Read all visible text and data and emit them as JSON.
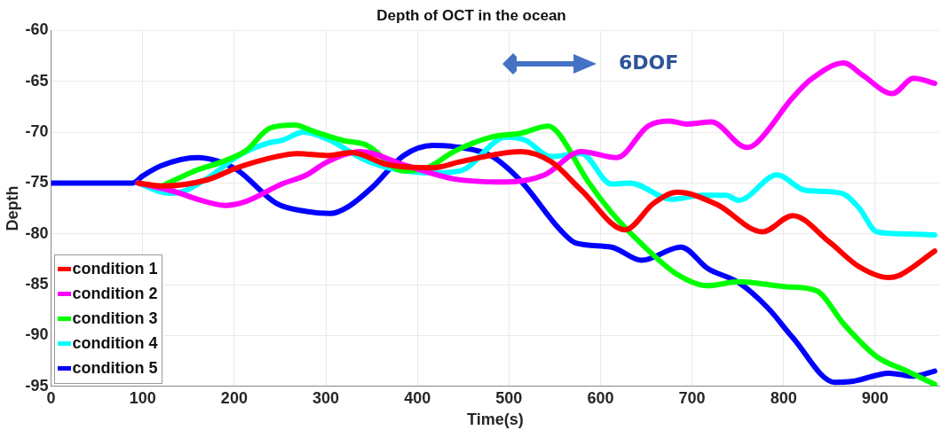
{
  "chart_data": {
    "type": "line",
    "title": "Depth of OCT in the ocean",
    "xlabel": "Time(s)",
    "ylabel": "Depth",
    "annotations": [
      "6DOF"
    ],
    "xlim": [
      0,
      970
    ],
    "xticks": [
      0,
      100,
      200,
      300,
      400,
      500,
      600,
      700,
      800,
      900
    ],
    "ylim": [
      -95,
      -60
    ],
    "yticks": [
      -95,
      -90,
      -85,
      -80,
      -75,
      -70,
      -65,
      -60
    ],
    "grid": true,
    "legend": "bottom left",
    "marker": "none",
    "line_style": "solid",
    "series": [
      {
        "name": "condition 1",
        "color": "#ff0000",
        "x": [
          95,
          121,
          170,
          203,
          246,
          269,
          302,
          328,
          368,
          417,
          447,
          513,
          546,
          579,
          627,
          658,
          684,
          727,
          777,
          810,
          850,
          882,
          915,
          926,
          965
        ],
        "values": [
          -75,
          -75.3,
          -74.7,
          -73.5,
          -72.4,
          -72.1,
          -72.3,
          -72.0,
          -73.2,
          -73.5,
          -72.9,
          -71.9,
          -72.9,
          -75.7,
          -79.6,
          -77.0,
          -75.9,
          -77.1,
          -79.8,
          -78.2,
          -80.8,
          -83.2,
          -84.3,
          -84.1,
          -81.7
        ]
      },
      {
        "name": "condition 2",
        "color": "#ff00ff",
        "x": [
          95,
          137,
          160,
          190,
          213,
          252,
          279,
          302,
          338,
          385,
          440,
          497,
          539,
          579,
          618,
          652,
          675,
          694,
          721,
          760,
          770,
          810,
          830,
          866,
          885,
          919,
          942,
          965
        ],
        "values": [
          -75,
          -75.9,
          -76.6,
          -77.2,
          -76.8,
          -75.1,
          -74.2,
          -72.9,
          -71.9,
          -73.2,
          -74.6,
          -74.9,
          -74.2,
          -71.9,
          -72.5,
          -69.4,
          -68.9,
          -69.2,
          -69.0,
          -71.5,
          -71.1,
          -66.6,
          -64.8,
          -63.2,
          -64.3,
          -66.2,
          -64.7,
          -65.2
        ]
      },
      {
        "name": "condition 3",
        "color": "#00ff00",
        "x": [
          121,
          160,
          187,
          213,
          239,
          266,
          286,
          318,
          345,
          385,
          411,
          440,
          480,
          513,
          543,
          553,
          586,
          612,
          645,
          684,
          717,
          751,
          803,
          836,
          866,
          902,
          935,
          965
        ],
        "values": [
          -75.3,
          -73.7,
          -72.9,
          -71.8,
          -69.6,
          -69.3,
          -69.9,
          -70.8,
          -71.3,
          -73.8,
          -73.5,
          -71.9,
          -70.5,
          -70.1,
          -69.4,
          -70.0,
          -74.8,
          -77.9,
          -81.0,
          -84.0,
          -85.1,
          -84.7,
          -85.2,
          -85.6,
          -88.9,
          -92.1,
          -93.5,
          -94.8
        ]
      },
      {
        "name": "condition 4",
        "color": "#00ffff",
        "x": [
          95,
          121,
          134,
          173,
          203,
          236,
          252,
          276,
          302,
          342,
          368,
          417,
          447,
          497,
          518,
          546,
          579,
          612,
          632,
          678,
          711,
          737,
          751,
          793,
          823,
          863,
          882,
          902,
          932,
          965
        ],
        "values": [
          -75,
          -75.9,
          -76.0,
          -74.4,
          -72.4,
          -71.1,
          -70.8,
          -70.0,
          -70.7,
          -72.7,
          -73.5,
          -74.0,
          -73.8,
          -70.5,
          -70.8,
          -72.4,
          -72.1,
          -75.1,
          -75.0,
          -76.6,
          -76.2,
          -76.2,
          -76.7,
          -74.2,
          -75.7,
          -76.0,
          -77.4,
          -79.8,
          -80.0,
          -80.1
        ]
      },
      {
        "name": "condition 5",
        "color": "#0000ff",
        "x": [
          0,
          89,
          100,
          120,
          160,
          180,
          203,
          246,
          279,
          305,
          325,
          351,
          385,
          417,
          447,
          480,
          513,
          556,
          573,
          612,
          645,
          688,
          717,
          751,
          783,
          810,
          856,
          876,
          915,
          942,
          965
        ],
        "values": [
          -75,
          -75,
          -74.3,
          -73.3,
          -72.5,
          -72.8,
          -73.7,
          -77.0,
          -77.8,
          -78.0,
          -77.3,
          -75.4,
          -72.3,
          -71.3,
          -71.5,
          -72.3,
          -74.8,
          -79.6,
          -80.9,
          -81.3,
          -82.6,
          -81.3,
          -83.4,
          -84.8,
          -87.3,
          -90.2,
          -94.6,
          -94.5,
          -93.7,
          -94.0,
          -93.5
        ]
      }
    ]
  }
}
